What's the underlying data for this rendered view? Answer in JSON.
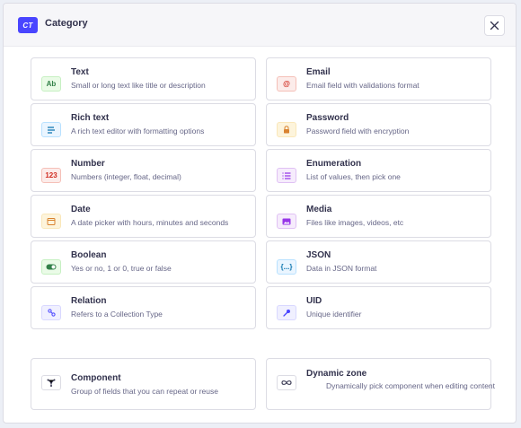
{
  "header": {
    "badge": "CT",
    "title": "Category"
  },
  "close_icon": "close-icon",
  "fields": [
    {
      "id": "text",
      "name": "Text",
      "desc": "Small or long text like title or description",
      "icon_text": "Ab",
      "icon_bg": "#eafbe7",
      "icon_border": "#c6f0c2",
      "icon_color": "#328048"
    },
    {
      "id": "email",
      "name": "Email",
      "desc": "Email field with validations format",
      "icon_text": "@",
      "icon_bg": "#fcecea",
      "icon_border": "#f5c0b8",
      "icon_color": "#d02b20"
    },
    {
      "id": "rich-text",
      "name": "Rich text",
      "desc": "A rich text editor with formatting options",
      "icon_text": "",
      "icon_bg": "#eaf5ff",
      "icon_border": "#b8e1ff",
      "icon_color": "#0c75af"
    },
    {
      "id": "password",
      "name": "Password",
      "desc": "Password field with encryption",
      "icon_text": "",
      "icon_bg": "#fdf4dc",
      "icon_border": "#fae7b9",
      "icon_color": "#d9822f"
    },
    {
      "id": "number",
      "name": "Number",
      "desc": "Numbers (integer, float, decimal)",
      "icon_text": "123",
      "icon_bg": "#fcecea",
      "icon_border": "#f5c0b8",
      "icon_color": "#d02b20"
    },
    {
      "id": "enumeration",
      "name": "Enumeration",
      "desc": "List of values, then pick one",
      "icon_text": "",
      "icon_bg": "#f6ecfc",
      "icon_border": "#e0c1f4",
      "icon_color": "#9736e8"
    },
    {
      "id": "date",
      "name": "Date",
      "desc": "A date picker with hours, minutes and seconds",
      "icon_text": "",
      "icon_bg": "#fdf4dc",
      "icon_border": "#fae7b9",
      "icon_color": "#d9822f"
    },
    {
      "id": "media",
      "name": "Media",
      "desc": "Files like images, videos, etc",
      "icon_text": "",
      "icon_bg": "#f6ecfc",
      "icon_border": "#e0c1f4",
      "icon_color": "#9736e8"
    },
    {
      "id": "boolean",
      "name": "Boolean",
      "desc": "Yes or no, 1 or 0, true or false",
      "icon_text": "",
      "icon_bg": "#eafbe7",
      "icon_border": "#c6f0c2",
      "icon_color": "#328048"
    },
    {
      "id": "json",
      "name": "JSON",
      "desc": "Data in JSON format",
      "icon_text": "{...}",
      "icon_bg": "#eaf5ff",
      "icon_border": "#b8e1ff",
      "icon_color": "#0c75af"
    },
    {
      "id": "relation",
      "name": "Relation",
      "desc": "Refers to a Collection Type",
      "icon_text": "",
      "icon_bg": "#f0f0ff",
      "icon_border": "#d9d8ff",
      "icon_color": "#4945ff"
    },
    {
      "id": "uid",
      "name": "UID",
      "desc": "Unique identifier",
      "icon_text": "",
      "icon_bg": "#f0f0ff",
      "icon_border": "#d9d8ff",
      "icon_color": "#4945ff"
    }
  ],
  "component": {
    "name": "Component",
    "desc": "Group of fields that you can repeat or reuse"
  },
  "dynamic_zone": {
    "name": "Dynamic zone",
    "desc": "Dynamically pick component when editing content"
  }
}
